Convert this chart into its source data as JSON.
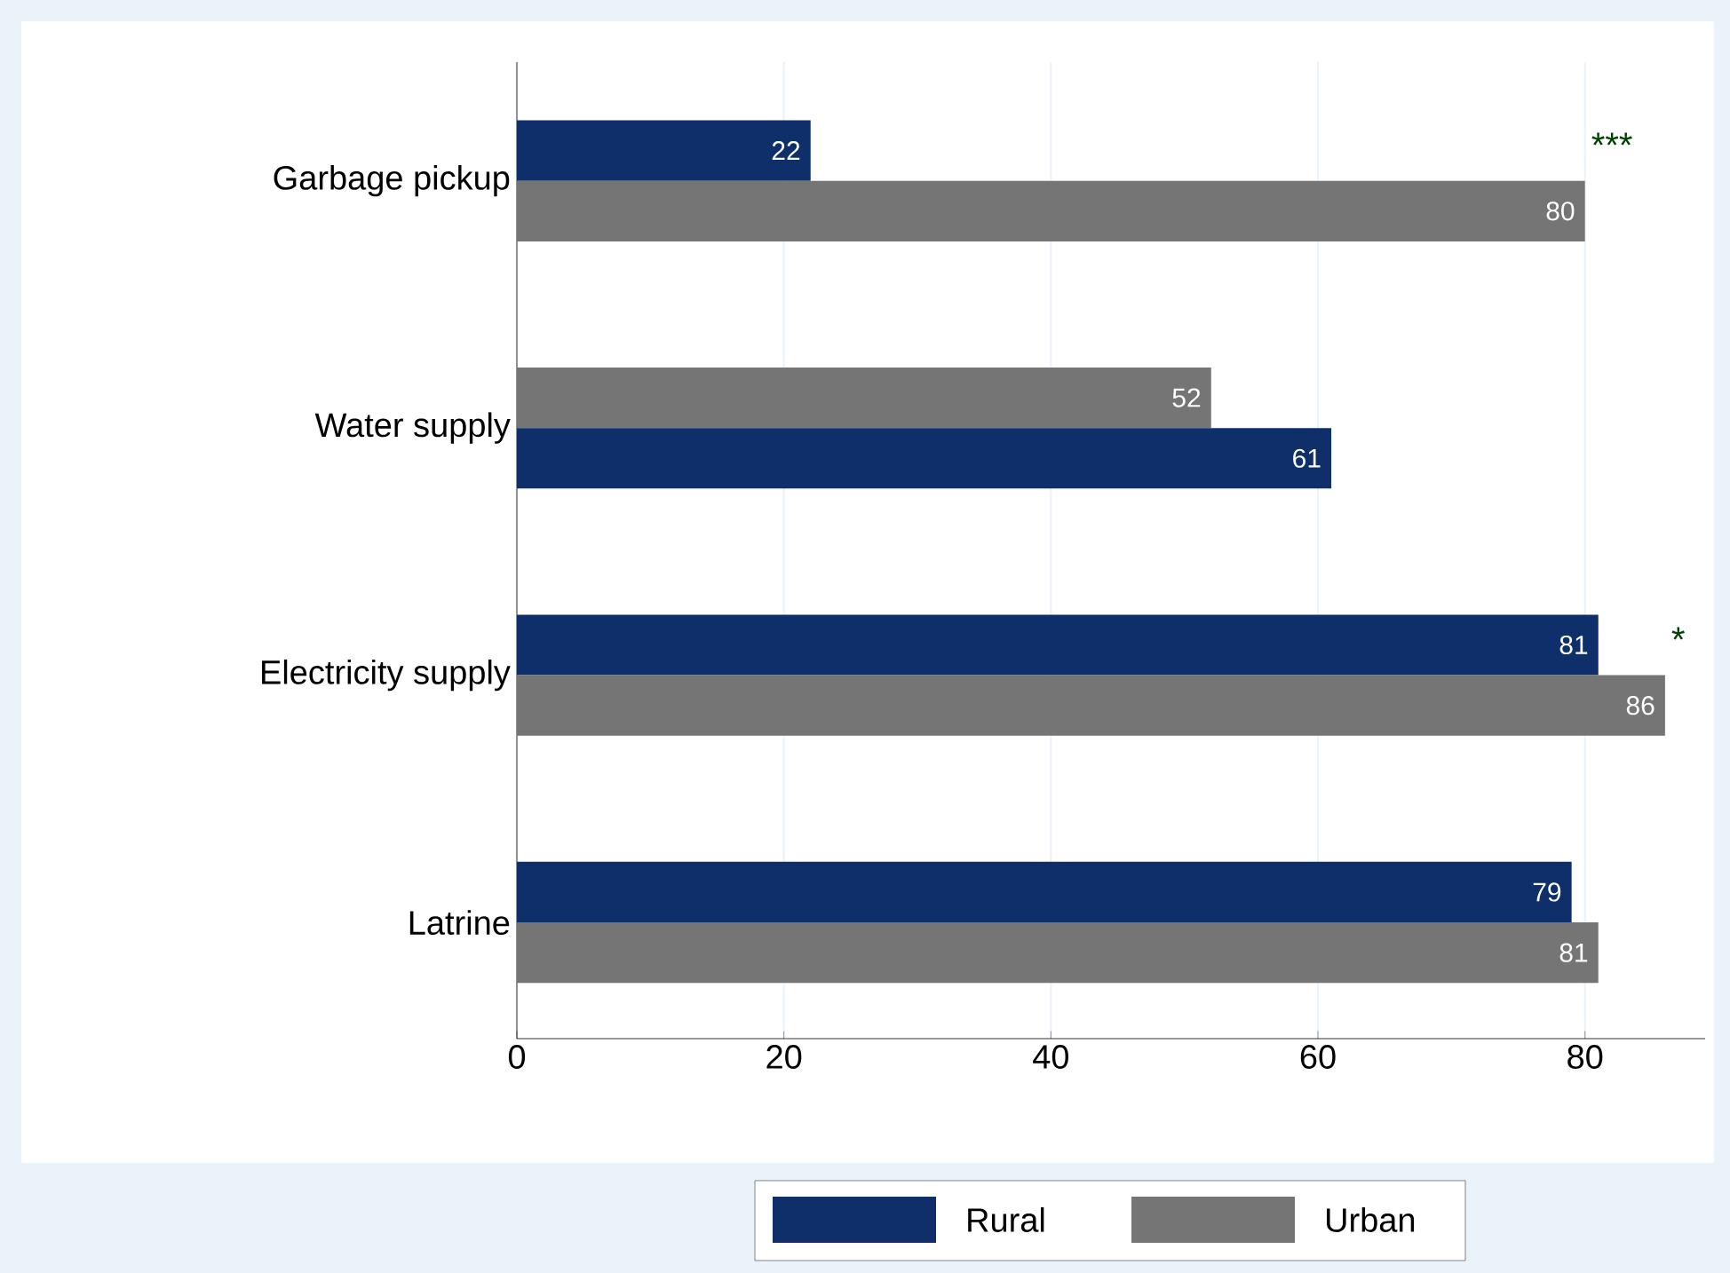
{
  "chart_data": {
    "type": "bar",
    "orientation": "horizontal",
    "categories": [
      "Garbage pickup",
      "Water supply",
      "Electricity supply",
      "Latrine"
    ],
    "series": [
      {
        "name": "Rural",
        "color": "#0f2f6b",
        "values": [
          22,
          61,
          81,
          79
        ]
      },
      {
        "name": "Urban",
        "color": "#757575",
        "values": [
          80,
          52,
          86,
          81
        ]
      }
    ],
    "xlim": [
      0,
      89
    ],
    "xticks": [
      0,
      20,
      40,
      60,
      80
    ],
    "grid": "x",
    "legend": "bottom",
    "data_labels": true,
    "annotations": [
      {
        "text": "***",
        "x": 80,
        "y": "Garbage pickup"
      },
      {
        "text": "*",
        "x": 86,
        "y": "Electricity supply"
      }
    ]
  }
}
